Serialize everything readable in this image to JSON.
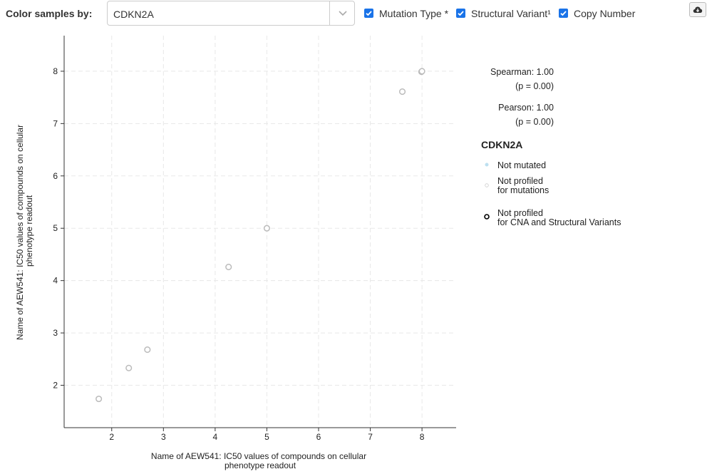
{
  "toolbar": {
    "color_label": "Color samples by:",
    "selected_gene": "CDKN2A",
    "checkboxes": [
      {
        "label": "Mutation Type *",
        "checked": true
      },
      {
        "label": "Structural Variant¹",
        "checked": true
      },
      {
        "label": "Copy Number",
        "checked": true
      }
    ],
    "checkbox_color": "#1a73e8",
    "download_icon": "cloud-download-icon"
  },
  "stats": {
    "spearman": "Spearman: 1.00",
    "spearman_p": "(p = 0.00)",
    "pearson": "Pearson: 1.00",
    "pearson_p": "(p = 0.00)"
  },
  "legend": {
    "title": "CDKN2A",
    "items": [
      {
        "line1": "Not mutated",
        "line2": "",
        "marker": "filled-dot",
        "color": "#bde0f0"
      },
      {
        "line1": "Not profiled",
        "line2": "for mutations",
        "marker": "hollow-circle",
        "color": "#cccccc"
      },
      {
        "line1": "Not profiled",
        "line2": "for CNA and Structural Variants",
        "marker": "hollow-circle-bold",
        "color": "#000000"
      }
    ]
  },
  "chart_data": {
    "type": "scatter",
    "xlabel_line1": "Name of AEW541: IC50 values of compounds on cellular",
    "xlabel_line2": "phenotype readout",
    "ylabel_line1": "Name of AEW541: IC50 values of compounds on cellular",
    "ylabel_line2": "phenotype readout",
    "xlim": [
      1.08,
      8.66
    ],
    "ylim": [
      1.19,
      8.68
    ],
    "x_ticks": [
      2,
      3,
      4,
      5,
      6,
      7,
      8
    ],
    "y_ticks": [
      2,
      3,
      4,
      5,
      6,
      7,
      8
    ],
    "grid": true,
    "point_color": "#bbbbbb",
    "points": [
      {
        "x": 1.75,
        "y": 1.74
      },
      {
        "x": 2.33,
        "y": 2.33
      },
      {
        "x": 2.69,
        "y": 2.68
      },
      {
        "x": 4.26,
        "y": 4.26
      },
      {
        "x": 5.0,
        "y": 5.0
      },
      {
        "x": 7.62,
        "y": 7.61
      },
      {
        "x": 7.99,
        "y": 7.99
      },
      {
        "x": 8.0,
        "y": 8.0
      }
    ]
  }
}
